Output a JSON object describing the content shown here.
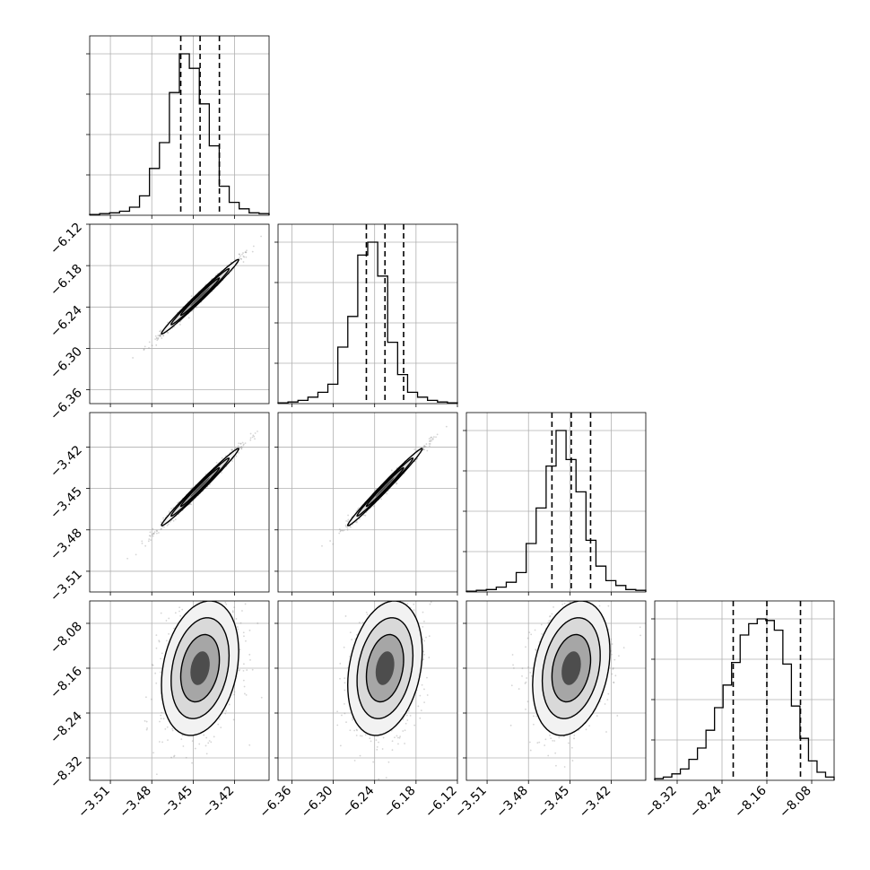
{
  "chart_data": {
    "type": "corner",
    "params": [
      {
        "ticks": [
          -3.51,
          -3.48,
          -3.45,
          -3.42
        ],
        "tick_labels": [
          "−3.51",
          "−3.48",
          "−3.45",
          "−3.42"
        ],
        "range": [
          -3.525,
          -3.395
        ],
        "median": -3.445,
        "q16": -3.459,
        "q84": -3.431,
        "hist": [
          0.005,
          0.01,
          0.015,
          0.025,
          0.05,
          0.12,
          0.29,
          0.45,
          0.76,
          1.0,
          0.91,
          0.69,
          0.43,
          0.18,
          0.08,
          0.04,
          0.015,
          0.01
        ],
        "ticks_on_diag_y": [
          0.25,
          0.5,
          0.75,
          1.0
        ]
      },
      {
        "ticks": [
          -6.36,
          -6.3,
          -6.24,
          -6.18,
          -6.12
        ],
        "tick_labels": [
          "−6.36",
          "−6.30",
          "−6.24",
          "−6.18",
          "−6.12"
        ],
        "range": [
          -6.38,
          -6.12
        ],
        "median": -6.225,
        "q16": -6.252,
        "q84": -6.198,
        "hist": [
          0.005,
          0.01,
          0.02,
          0.04,
          0.07,
          0.12,
          0.35,
          0.54,
          0.92,
          1.0,
          0.79,
          0.38,
          0.18,
          0.07,
          0.04,
          0.02,
          0.01,
          0.005
        ],
        "ticks_on_diag_y": [
          0.25,
          0.5,
          0.75,
          1.0
        ]
      },
      {
        "ticks": [
          -3.51,
          -3.48,
          -3.45,
          -3.42
        ],
        "tick_labels": [
          "−3.51",
          "−3.48",
          "−3.45",
          "−3.42"
        ],
        "range": [
          -3.525,
          -3.395
        ],
        "median": -3.449,
        "q16": -3.463,
        "q84": -3.435,
        "hist": [
          0.005,
          0.01,
          0.015,
          0.03,
          0.06,
          0.12,
          0.3,
          0.52,
          0.78,
          1.0,
          0.82,
          0.62,
          0.32,
          0.16,
          0.07,
          0.04,
          0.015,
          0.01
        ],
        "ticks_on_diag_y": [
          0.25,
          0.5,
          0.75,
          1.0
        ]
      },
      {
        "ticks": [
          -8.32,
          -8.24,
          -8.16,
          -8.08
        ],
        "tick_labels": [
          "−8.32",
          "−8.24",
          "−8.16",
          "−8.08"
        ],
        "range": [
          -8.36,
          -8.04
        ],
        "median": -8.16,
        "q16": -8.22,
        "q84": -8.1,
        "hist": [
          0.01,
          0.02,
          0.04,
          0.07,
          0.13,
          0.2,
          0.31,
          0.45,
          0.59,
          0.73,
          0.9,
          0.97,
          1.0,
          0.99,
          0.93,
          0.72,
          0.46,
          0.26,
          0.12,
          0.05,
          0.02
        ],
        "ticks_on_diag_y": [
          0.25,
          0.5,
          0.75,
          1.0
        ]
      }
    ],
    "correlations": [
      {
        "row": 1,
        "col": 0,
        "corr": 0.99,
        "mean": [
          -3.445,
          -6.225
        ],
        "sd": [
          0.014,
          0.027
        ]
      },
      {
        "row": 2,
        "col": 0,
        "corr": 0.99,
        "mean": [
          -3.445,
          -3.449
        ],
        "sd": [
          0.014,
          0.014
        ]
      },
      {
        "row": 2,
        "col": 1,
        "corr": 0.99,
        "mean": [
          -6.225,
          -3.449
        ],
        "sd": [
          0.027,
          0.014
        ]
      },
      {
        "row": 3,
        "col": 0,
        "corr": 0.25,
        "mean": [
          -3.445,
          -8.16
        ],
        "sd": [
          0.014,
          0.06
        ]
      },
      {
        "row": 3,
        "col": 1,
        "corr": 0.25,
        "mean": [
          -6.225,
          -8.16
        ],
        "sd": [
          0.027,
          0.06
        ]
      },
      {
        "row": 3,
        "col": 2,
        "corr": 0.25,
        "mean": [
          -3.449,
          -8.16
        ],
        "sd": [
          0.014,
          0.06
        ]
      }
    ],
    "grid": true,
    "colors": {
      "hist": "#000000",
      "scatter": "#888888",
      "contour": "#000000",
      "quantile": "#000000"
    }
  }
}
